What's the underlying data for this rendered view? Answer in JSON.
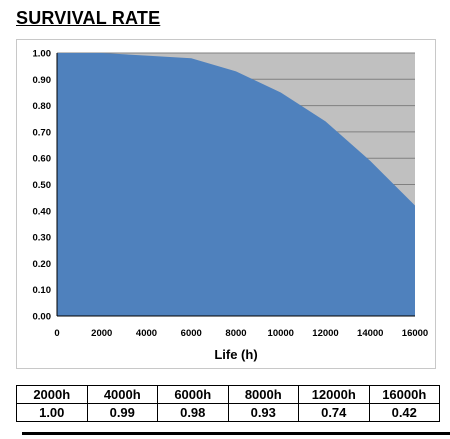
{
  "page": {
    "title": "SURVIVAL RATE"
  },
  "colors": {
    "area_fill": "#4f81bd",
    "plot_background": "#c0c0c0",
    "gridline": "#808080"
  },
  "chart_data": {
    "type": "area",
    "title": "",
    "xlabel": "Life (h)",
    "ylabel": "",
    "x": [
      0,
      2000,
      4000,
      6000,
      8000,
      10000,
      12000,
      14000,
      16000
    ],
    "series": [
      {
        "values": [
          1.0,
          1.0,
          0.99,
          0.98,
          0.93,
          0.85,
          0.74,
          0.59,
          0.42
        ]
      }
    ],
    "xlim": [
      0,
      16000
    ],
    "ylim": [
      0,
      1
    ],
    "xticks": [
      0,
      2000,
      4000,
      6000,
      8000,
      10000,
      12000,
      14000,
      16000
    ],
    "yticks": [
      0.0,
      0.1,
      0.2,
      0.3,
      0.4,
      0.5,
      0.6,
      0.7,
      0.8,
      0.9,
      1.0
    ],
    "xtick_labels": [
      "0",
      "2000",
      "4000",
      "6000",
      "8000",
      "10000",
      "12000",
      "14000",
      "16000"
    ],
    "ytick_labels": [
      "0.00",
      "0.10",
      "0.20",
      "0.30",
      "0.40",
      "0.50",
      "0.60",
      "0.70",
      "0.80",
      "0.90",
      "1.00"
    ],
    "grid": "horizontal",
    "legend": "none"
  },
  "table": {
    "headers": [
      "2000h",
      "4000h",
      "6000h",
      "8000h",
      "12000h",
      "16000h"
    ],
    "values": [
      "1.00",
      "0.99",
      "0.98",
      "0.93",
      "0.74",
      "0.42"
    ]
  }
}
